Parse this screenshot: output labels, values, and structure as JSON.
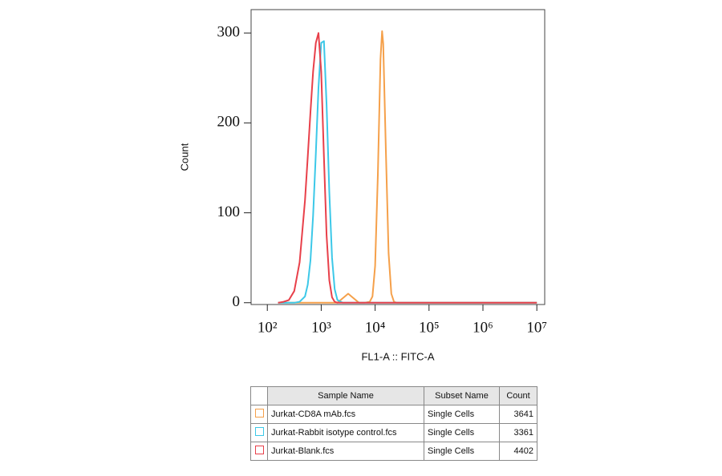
{
  "chart_data": {
    "type": "line",
    "x_label": "FL1-A :: FITC-A",
    "y_label": "Count",
    "log_x": true,
    "x": [
      158,
      200,
      251,
      316,
      398,
      501,
      562,
      631,
      708,
      794,
      891,
      1000,
      1122,
      1259,
      1413,
      1585,
      1778,
      1995,
      2512,
      3162,
      3981,
      5012,
      6310,
      7943,
      8913,
      10000,
      11220,
      12589,
      13490,
      14125,
      15849,
      17783,
      19953,
      22387,
      25119,
      31623,
      100000,
      1000000,
      10000000
    ],
    "xlim": [
      50,
      14000000
    ],
    "xticks": [
      {
        "value": 100,
        "label": "10²"
      },
      {
        "value": 1000,
        "label": "10³"
      },
      {
        "value": 10000,
        "label": "10⁴"
      },
      {
        "value": 100000,
        "label": "10⁵"
      },
      {
        "value": 1000000,
        "label": "10⁶"
      },
      {
        "value": 10000000,
        "label": "10⁷"
      }
    ],
    "ylim": [
      -2,
      326
    ],
    "yticks": [
      0,
      100,
      200,
      300
    ],
    "series": [
      {
        "name": "Jurkat-CD8A mAb.fcs",
        "color": "#f5a04a",
        "values": [
          0,
          0,
          0,
          0,
          0,
          0,
          0,
          0,
          0,
          0,
          0,
          0,
          0,
          0,
          0,
          0,
          0,
          0,
          5,
          10,
          5,
          0,
          0,
          1,
          7,
          41,
          142,
          271,
          302,
          288,
          169,
          55,
          10,
          1,
          0,
          0,
          0,
          0,
          0
        ]
      },
      {
        "name": "Jurkat-Rabbit isotype control.fcs",
        "color": "#3cc8e8",
        "values": [
          0,
          0,
          0,
          0,
          1,
          7,
          20,
          47,
          97,
          166,
          239,
          289,
          291,
          220,
          123,
          50,
          15,
          3,
          0,
          0,
          0,
          0,
          0,
          0,
          0,
          0,
          0,
          0,
          0,
          0,
          0,
          0,
          0,
          0,
          0,
          0,
          0,
          0,
          0
        ]
      },
      {
        "name": "Jurkat-Blank.fcs",
        "color": "#e8404a",
        "values": [
          0,
          1,
          3,
          13,
          45,
          114,
          162,
          212,
          257,
          289,
          300,
          257,
          162,
          75,
          25,
          6,
          1,
          0,
          0,
          0,
          0,
          0,
          0,
          0,
          0,
          0,
          0,
          0,
          0,
          0,
          0,
          0,
          0,
          0,
          0,
          0,
          0,
          0,
          0
        ]
      }
    ],
    "table": {
      "columns": [
        "Sample Name",
        "Subset Name",
        "Count"
      ],
      "rows": [
        [
          "Single Cells",
          3641
        ],
        [
          "Single Cells",
          3361
        ],
        [
          "Single Cells",
          4402
        ]
      ]
    }
  }
}
